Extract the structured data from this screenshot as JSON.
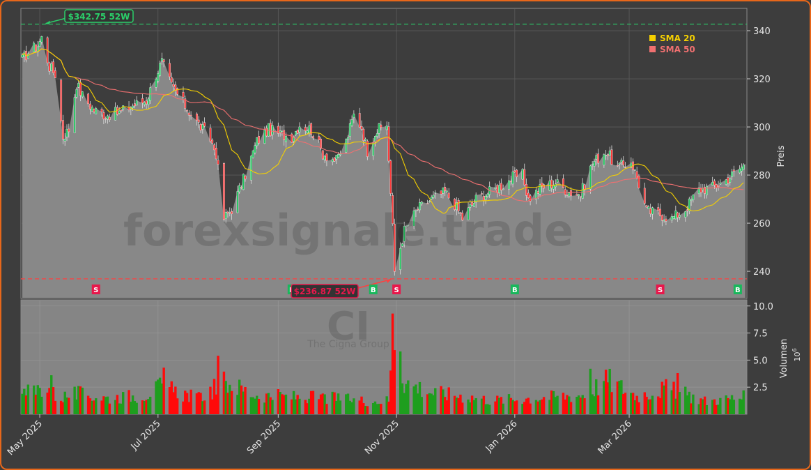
{
  "chart_data": {
    "type": "candlestick",
    "price_panel": {
      "ylabel": "Preis",
      "ylim": [
        229,
        349
      ],
      "yticks": [
        240,
        260,
        280,
        300,
        320,
        340
      ],
      "last_price": 284.5
    },
    "volume_panel": {
      "ylabel": "Volumen",
      "ylabel_exponent": "10",
      "ylabel_exponent_power": "6",
      "ylim": [
        0,
        10.5
      ],
      "yticks": [
        2.5,
        5.0,
        7.5,
        10.0
      ],
      "ytick_labels": [
        "2.5",
        "5.0",
        "7.5",
        "10.0"
      ]
    },
    "x_axis": {
      "start": "2025-04-22",
      "end": "2026-04-30",
      "tick_dates": [
        "2025-05-01",
        "2025-07-01",
        "2025-09-01",
        "2025-11-01",
        "2026-01-01",
        "2026-03-01"
      ],
      "tick_labels": [
        "May 2025",
        "Jul 2025",
        "Sep 2025",
        "Nov 2025",
        "Jan 2026",
        "Mar 2026"
      ]
    },
    "watermark": "forexsignale.trade",
    "logo_text": "CI",
    "logo_subtext": "The Cigna Group",
    "high_52w": {
      "date": "2025-05-02",
      "value": 342.75,
      "label": "$342.75 52W"
    },
    "low_52w": {
      "date": "2025-10-31",
      "value": 236.87,
      "label": "$236.87 52W"
    },
    "legend": [
      {
        "name": "SMA 20",
        "color": "#f5d000"
      },
      {
        "name": "SMA 50",
        "color": "#f07070"
      }
    ],
    "signals": [
      {
        "type": "S",
        "date": "2025-05-30",
        "color": "#e8174b"
      },
      {
        "type": "B",
        "date": "2025-09-08",
        "color": "#19b85c"
      },
      {
        "type": "B",
        "date": "2025-10-20",
        "color": "#19b85c"
      },
      {
        "type": "S",
        "date": "2025-11-01",
        "color": "#e8174b"
      },
      {
        "type": "B",
        "date": "2026-01-01",
        "color": "#19b85c"
      },
      {
        "type": "S",
        "date": "2026-03-17",
        "color": "#e8174b"
      },
      {
        "type": "B",
        "date": "2026-04-26",
        "color": "#19b85c"
      }
    ],
    "price_anchors": [
      [
        "2025-04-22",
        328
      ],
      [
        "2025-04-25",
        331
      ],
      [
        "2025-04-30",
        334
      ],
      [
        "2025-05-02",
        337
      ],
      [
        "2025-05-06",
        325
      ],
      [
        "2025-05-09",
        322
      ],
      [
        "2025-05-13",
        296
      ],
      [
        "2025-05-16",
        299
      ],
      [
        "2025-05-20",
        318
      ],
      [
        "2025-05-23",
        313
      ],
      [
        "2025-05-29",
        307
      ],
      [
        "2025-06-04",
        305
      ],
      [
        "2025-06-11",
        306
      ],
      [
        "2025-06-18",
        309
      ],
      [
        "2025-06-25",
        311
      ],
      [
        "2025-06-30",
        322
      ],
      [
        "2025-07-03",
        327
      ],
      [
        "2025-07-08",
        317
      ],
      [
        "2025-07-14",
        310
      ],
      [
        "2025-07-21",
        302
      ],
      [
        "2025-07-28",
        295
      ],
      [
        "2025-07-31",
        289
      ],
      [
        "2025-08-04",
        262
      ],
      [
        "2025-08-08",
        266
      ],
      [
        "2025-08-14",
        278
      ],
      [
        "2025-08-21",
        294
      ],
      [
        "2025-08-27",
        299
      ],
      [
        "2025-09-02",
        297
      ],
      [
        "2025-09-08",
        296
      ],
      [
        "2025-09-12",
        301
      ],
      [
        "2025-09-18",
        299
      ],
      [
        "2025-09-24",
        289
      ],
      [
        "2025-10-01",
        286
      ],
      [
        "2025-10-06",
        294
      ],
      [
        "2025-10-10",
        305
      ],
      [
        "2025-10-14",
        300
      ],
      [
        "2025-10-17",
        290
      ],
      [
        "2025-10-21",
        298
      ],
      [
        "2025-10-27",
        301
      ],
      [
        "2025-10-30",
        258
      ],
      [
        "2025-10-31",
        240
      ],
      [
        "2025-11-05",
        257
      ],
      [
        "2025-11-12",
        266
      ],
      [
        "2025-11-19",
        270
      ],
      [
        "2025-11-26",
        273
      ],
      [
        "2025-12-01",
        268
      ],
      [
        "2025-12-05",
        262
      ],
      [
        "2025-12-12",
        270
      ],
      [
        "2025-12-19",
        273
      ],
      [
        "2025-12-26",
        276
      ],
      [
        "2025-12-31",
        279
      ],
      [
        "2026-01-05",
        280
      ],
      [
        "2026-01-08",
        270
      ],
      [
        "2026-01-15",
        275
      ],
      [
        "2026-01-22",
        277
      ],
      [
        "2026-01-29",
        273
      ],
      [
        "2026-02-04",
        272
      ],
      [
        "2026-02-10",
        285
      ],
      [
        "2026-02-17",
        290
      ],
      [
        "2026-02-23",
        283
      ],
      [
        "2026-03-02",
        286
      ],
      [
        "2026-03-05",
        279
      ],
      [
        "2026-03-10",
        265
      ],
      [
        "2026-03-16",
        264
      ],
      [
        "2026-03-23",
        262
      ],
      [
        "2026-03-30",
        266
      ],
      [
        "2026-04-06",
        274
      ],
      [
        "2026-04-13",
        275
      ],
      [
        "2026-04-20",
        278
      ],
      [
        "2026-04-26",
        282
      ],
      [
        "2026-04-29",
        284
      ]
    ],
    "volume_anchors": [
      [
        "2025-04-22",
        1.8
      ],
      [
        "2025-05-05",
        2.6
      ],
      [
        "2025-05-10",
        1.5
      ],
      [
        "2025-05-20",
        1.9
      ],
      [
        "2025-06-05",
        1.5
      ],
      [
        "2025-06-24",
        1.8
      ],
      [
        "2025-07-02",
        2.5
      ],
      [
        "2025-07-22",
        1.5
      ],
      [
        "2025-08-05",
        3.0
      ],
      [
        "2025-08-20",
        1.8
      ],
      [
        "2025-09-10",
        1.6
      ],
      [
        "2025-09-30",
        1.5
      ],
      [
        "2025-10-20",
        1.2
      ],
      [
        "2025-10-28",
        1.3
      ],
      [
        "2025-10-31",
        8.0
      ],
      [
        "2025-11-05",
        3.0
      ],
      [
        "2025-11-20",
        2.0
      ],
      [
        "2025-12-05",
        1.7
      ],
      [
        "2025-12-20",
        1.3
      ],
      [
        "2026-01-10",
        1.5
      ],
      [
        "2026-02-05",
        1.8
      ],
      [
        "2026-02-18",
        3.2
      ],
      [
        "2026-03-05",
        1.7
      ],
      [
        "2026-03-20",
        2.4
      ],
      [
        "2026-04-10",
        1.2
      ],
      [
        "2026-04-29",
        1.6
      ]
    ],
    "volume_spikes": [
      {
        "date": "2025-05-07",
        "value": 3.6
      },
      {
        "date": "2025-07-04",
        "value": 4.3
      },
      {
        "date": "2025-08-01",
        "value": 5.4
      },
      {
        "date": "2025-10-30",
        "value": 9.3
      },
      {
        "date": "2025-11-03",
        "value": 5.8
      },
      {
        "date": "2026-02-09",
        "value": 4.2
      },
      {
        "date": "2026-03-26",
        "value": 3.8
      }
    ]
  }
}
